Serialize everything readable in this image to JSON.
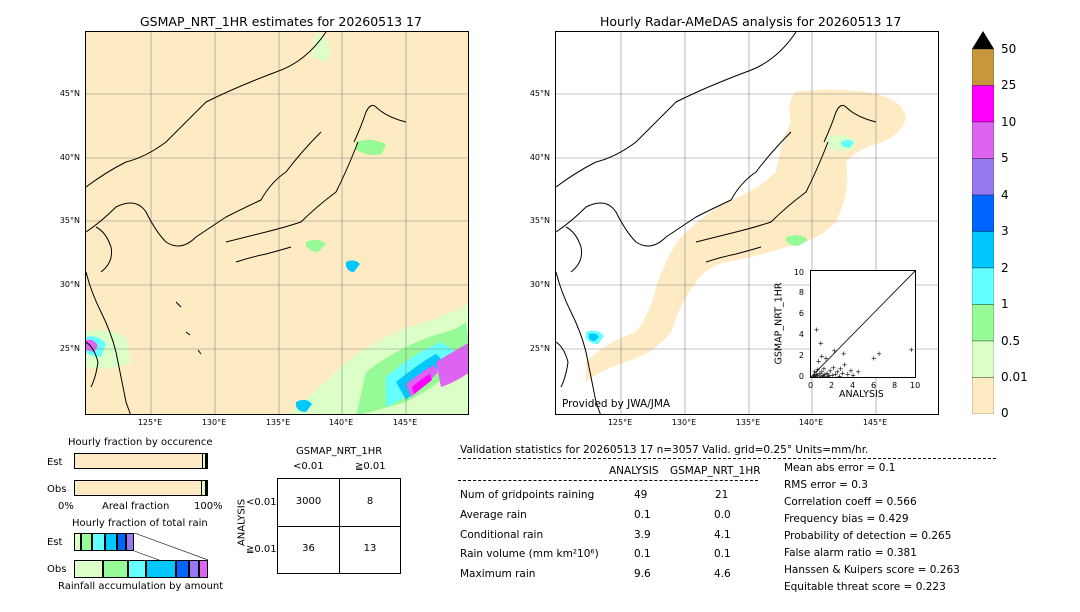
{
  "left_map": {
    "title": "GSMAP_NRT_1HR estimates for 20260513 17",
    "lat_labels": [
      "45°N",
      "40°N",
      "35°N",
      "30°N",
      "25°N"
    ],
    "lon_labels": [
      "125°E",
      "130°E",
      "135°E",
      "140°E",
      "145°E"
    ]
  },
  "right_map": {
    "title": "Hourly Radar-AMeDAS analysis for 20260513 17",
    "lat_labels": [
      "45°N",
      "40°N",
      "35°N",
      "30°N",
      "25°N"
    ],
    "lon_labels": [
      "125°E",
      "130°E",
      "135°E",
      "140°E",
      "145°E"
    ],
    "credit": "Provided by JWA/JMA"
  },
  "colorbar": {
    "labels": [
      "50",
      "25",
      "10",
      "5",
      "4",
      "3",
      "2",
      "1",
      "0.5",
      "0.01",
      "0"
    ],
    "colors": [
      "#c8963c",
      "#ff00ff",
      "#dc64f0",
      "#9678f0",
      "#0064ff",
      "#00c8ff",
      "#64ffff",
      "#96fa96",
      "#dcffc8",
      "#ffebc3"
    ],
    "over_color": "#000000"
  },
  "scatter": {
    "ylabel": "GSMAP_NRT_1HR",
    "xlabel": "ANALYSIS",
    "ticks": [
      "0",
      "2",
      "4",
      "6",
      "8",
      "10"
    ],
    "xlim": [
      0,
      10
    ],
    "ylim": [
      0,
      10
    ],
    "points": [
      [
        0.2,
        0.1
      ],
      [
        0.3,
        0.2
      ],
      [
        0.4,
        0.1
      ],
      [
        0.5,
        0.3
      ],
      [
        0.6,
        0.2
      ],
      [
        0.8,
        0.4
      ],
      [
        0.9,
        0.1
      ],
      [
        1.0,
        0.5
      ],
      [
        1.1,
        0.2
      ],
      [
        1.2,
        0.8
      ],
      [
        1.3,
        0.3
      ],
      [
        1.5,
        0.4
      ],
      [
        1.6,
        0.1
      ],
      [
        1.8,
        0.6
      ],
      [
        2.0,
        0.2
      ],
      [
        2.1,
        0.9
      ],
      [
        2.3,
        0.3
      ],
      [
        2.5,
        0.5
      ],
      [
        2.7,
        0.1
      ],
      [
        3.0,
        0.4
      ],
      [
        3.2,
        1.2
      ],
      [
        3.5,
        0.3
      ],
      [
        3.8,
        0.6
      ],
      [
        4.0,
        0.2
      ],
      [
        4.5,
        0.5
      ],
      [
        0.7,
        1.5
      ],
      [
        1.0,
        2.0
      ],
      [
        1.4,
        1.8
      ],
      [
        0.5,
        4.5
      ],
      [
        0.9,
        3.2
      ],
      [
        2.2,
        2.5
      ],
      [
        3.1,
        2.2
      ],
      [
        6.0,
        1.8
      ],
      [
        6.5,
        2.2
      ],
      [
        9.6,
        2.6
      ],
      [
        0.3,
        0.5
      ],
      [
        0.6,
        0.7
      ],
      [
        1.2,
        0.1
      ],
      [
        1.7,
        0.2
      ],
      [
        2.8,
        0.8
      ]
    ]
  },
  "occurrence": {
    "title": "Hourly fraction by occurence",
    "row_labels": [
      "Est",
      "Obs"
    ],
    "axis_left": "0%",
    "axis_mid": "Areal fraction",
    "axis_right": "100%",
    "est_fractions": [
      0.968,
      0.025,
      0.007
    ],
    "obs_fractions": [
      0.96,
      0.03,
      0.01
    ],
    "seg_colors": [
      "#ffebc3",
      "#dcffc8",
      "#96fa96"
    ]
  },
  "total_rain": {
    "title": "Hourly fraction of total rain",
    "row_labels": [
      "Est",
      "Obs"
    ],
    "footer": "Rainfall accumulation by amount",
    "est_fractions": [
      0.12,
      0.18,
      0.22,
      0.2,
      0.15,
      0.13
    ],
    "est_total_fraction": 0.45,
    "obs_fractions": [
      0.22,
      0.18,
      0.14,
      0.22,
      0.1,
      0.07,
      0.07
    ],
    "seg_colors": [
      "#dcffc8",
      "#96fa96",
      "#64ffff",
      "#00c8ff",
      "#0064ff",
      "#9678f0",
      "#dc64f0"
    ]
  },
  "contingency": {
    "title": "GSMAP_NRT_1HR",
    "col_labels": [
      "<0.01",
      "≧0.01"
    ],
    "row_axis": "ANALYSIS",
    "row_labels": [
      "<0.01",
      "≧0.01"
    ],
    "cells": [
      [
        "3000",
        "8"
      ],
      [
        "36",
        "13"
      ]
    ]
  },
  "validation": {
    "header": "Validation statistics for 20260513 17  n=3057 Valid. grid=0.25° Units=mm/hr.",
    "col_analysis": "ANALYSIS",
    "col_gsmap": "GSMAP_NRT_1HR",
    "rows": [
      {
        "label": "Num of gridpoints raining",
        "analysis": "49",
        "gsmap": "21"
      },
      {
        "label": "Average rain",
        "analysis": "0.1",
        "gsmap": "0.0"
      },
      {
        "label": "Conditional rain",
        "analysis": "3.9",
        "gsmap": "4.1"
      },
      {
        "label": "Rain volume (mm km²10⁶)",
        "analysis": "0.1",
        "gsmap": "0.1"
      },
      {
        "label": "Maximum rain",
        "analysis": "9.6",
        "gsmap": "4.6"
      }
    ],
    "scores": [
      "Mean abs error =    0.1",
      "RMS error =    0.3",
      "Correlation coeff =  0.566",
      "Frequency bias =  0.429",
      "Probability of detection =  0.265",
      "False alarm ratio =  0.381",
      "Hanssen & Kuipers score =  0.263",
      "Equitable threat score =  0.223"
    ]
  },
  "chart_data": {
    "type": "scatter",
    "title": "",
    "xlabel": "ANALYSIS",
    "ylabel": "GSMAP_NRT_1HR",
    "xlim": [
      0,
      10
    ],
    "ylim": [
      0,
      10
    ],
    "contingency": [
      [
        3000,
        8
      ],
      [
        36,
        13
      ]
    ],
    "stats": {
      "n": 3057,
      "num_gridpoints_raining": {
        "analysis": 49,
        "gsmap": 21
      },
      "average_rain": {
        "analysis": 0.1,
        "gsmap": 0.0
      },
      "conditional_rain": {
        "analysis": 3.9,
        "gsmap": 4.1
      },
      "rain_volume": {
        "analysis": 0.1,
        "gsmap": 0.1
      },
      "maximum_rain": {
        "analysis": 9.6,
        "gsmap": 4.6
      },
      "mean_abs_error": 0.1,
      "rms_error": 0.3,
      "correlation_coeff": 0.566,
      "frequency_bias": 0.429,
      "probability_of_detection": 0.265,
      "false_alarm_ratio": 0.381,
      "hanssen_kuipers": 0.263,
      "equitable_threat": 0.223
    }
  }
}
